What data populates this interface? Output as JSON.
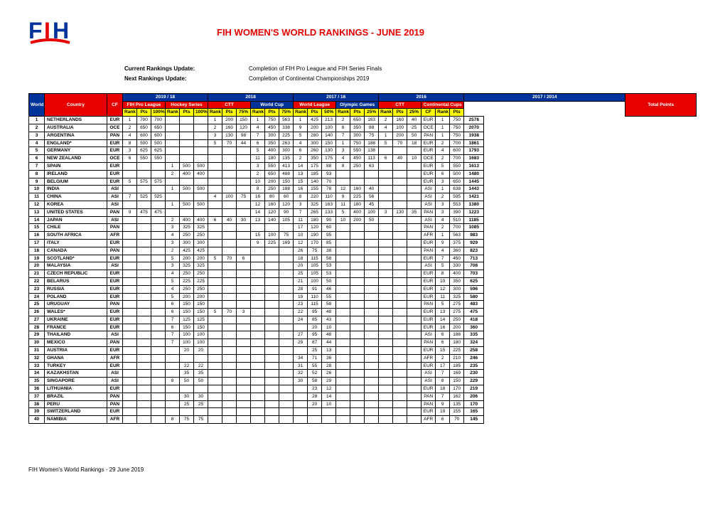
{
  "title": "FIH WOMEN'S WORLD RANKINGS  - JUNE 2019",
  "meta": {
    "current_label": "Current Rankings Update:",
    "current_value": "Completion of FIH Pro League and FIH Series Finals",
    "next_label": "Next Rankings Update:",
    "next_value": "Completion of Continental Championships 2019"
  },
  "periods": {
    "p1": "2019 / 18",
    "p2": "2018",
    "p3": "2017 / 16",
    "p4": "2016",
    "p5": "2017 / 2014"
  },
  "events": {
    "e1": "FIH Pro League",
    "e2": "Hockey Series",
    "e3": "CTT",
    "e4": "World Cup",
    "e5": "World League",
    "e6": "Olympic Games",
    "e7": "CTT",
    "e8": "Continental Cups"
  },
  "sub": {
    "rank": "Rank",
    "pts": "Pts",
    "w100": "100%",
    "w75": "75%",
    "w50": "50%",
    "w25": "25%",
    "cf": "CF"
  },
  "headers": {
    "world_rank": "World Rank",
    "country": "Country",
    "cf": "CF",
    "total": "Total Points"
  },
  "footer": "FIH Women's World Rankings -  29 June 2019",
  "rows": [
    {
      "r": 1,
      "c": "NETHERLANDS",
      "cf": "EUR",
      "d": [
        "1",
        "700",
        "700",
        "",
        "",
        "",
        "1",
        "200",
        "150",
        "1",
        "750",
        "563",
        "1",
        "425",
        "213",
        "2",
        "650",
        "163",
        "2",
        "160",
        "40",
        "EUR",
        "1",
        "750"
      ],
      "t": 2578
    },
    {
      "r": 2,
      "c": "AUSTRALIA",
      "cf": "OCE",
      "d": [
        "2",
        "650",
        "650",
        "",
        "",
        "",
        "2",
        "160",
        "120",
        "4",
        "450",
        "338",
        "9",
        "200",
        "100",
        "6",
        "350",
        "88",
        "4",
        "100",
        "25",
        "OCE",
        "1",
        "750"
      ],
      "t": 2070
    },
    {
      "r": 3,
      "c": "ARGENTINA",
      "cf": "PAN",
      "d": [
        "4",
        "600",
        "600",
        "",
        "",
        "",
        "3",
        "130",
        "98",
        "7",
        "300",
        "225",
        "5",
        "280",
        "140",
        "7",
        "300",
        "75",
        "1",
        "200",
        "50",
        "PAN",
        "1",
        "750"
      ],
      "t": 1938
    },
    {
      "r": 4,
      "c": "ENGLAND*",
      "cf": "EUR",
      "d": [
        "8",
        "500",
        "500",
        "",
        "",
        "",
        "5",
        "70",
        "44",
        "6",
        "350",
        "263",
        "4",
        "300",
        "150",
        "1",
        "750",
        "188",
        "5",
        "70",
        "18",
        "EUR",
        "2",
        "700"
      ],
      "t": 1861
    },
    {
      "r": 5,
      "c": "GERMANY",
      "cf": "EUR",
      "d": [
        "3",
        "625",
        "625",
        "",
        "",
        "",
        "",
        "",
        "",
        "5",
        "400",
        "300",
        "6",
        "260",
        "130",
        "3",
        "550",
        "138",
        "",
        "",
        "",
        "EUR",
        "4",
        "600"
      ],
      "t": 1793
    },
    {
      "r": 6,
      "c": "NEW ZEALAND",
      "cf": "OCE",
      "d": [
        "6",
        "550",
        "550",
        "",
        "",
        "",
        "",
        "",
        "",
        "11",
        "180",
        "135",
        "2",
        "350",
        "175",
        "4",
        "450",
        "113",
        "6",
        "40",
        "10",
        "OCE",
        "2",
        "700"
      ],
      "t": 1683
    },
    {
      "r": 7,
      "c": "SPAIN",
      "cf": "EUR",
      "d": [
        "",
        "",
        "",
        "1",
        "500",
        "500",
        "",
        "",
        "",
        "3",
        "550",
        "413",
        "14",
        "175",
        "88",
        "8",
        "250",
        "63",
        "",
        "",
        "",
        "EUR",
        "5",
        "550"
      ],
      "t": 1613
    },
    {
      "r": 8,
      "c": "IRELAND",
      "cf": "EUR",
      "d": [
        "",
        "",
        "",
        "2",
        "400",
        "400",
        "",
        "",
        "",
        "2",
        "650",
        "488",
        "13",
        "185",
        "93",
        "",
        "",
        "",
        "",
        "",
        "",
        "EUR",
        "6",
        "500"
      ],
      "t": 1480
    },
    {
      "r": 9,
      "c": "BELGIUM",
      "cf": "EUR",
      "d": [
        "5",
        "575",
        "575",
        "",
        "",
        "",
        "",
        "",
        "",
        "10",
        "200",
        "150",
        "15",
        "140",
        "70",
        "",
        "",
        "",
        "",
        "",
        "",
        "EUR",
        "3",
        "650"
      ],
      "t": 1445
    },
    {
      "r": 10,
      "c": "INDIA",
      "cf": "ASI",
      "d": [
        "",
        "",
        "",
        "1",
        "500",
        "500",
        "",
        "",
        "",
        "8",
        "250",
        "188",
        "16",
        "155",
        "78",
        "12",
        "160",
        "40",
        "",
        "",
        "",
        "ASI",
        "1",
        "638"
      ],
      "t": 1443
    },
    {
      "r": 11,
      "c": "CHINA",
      "cf": "ASI",
      "d": [
        "7",
        "525",
        "525",
        "",
        "",
        "",
        "4",
        "100",
        "75",
        "16",
        "80",
        "60",
        "8",
        "220",
        "110",
        "9",
        "225",
        "56",
        "",
        "",
        "",
        "ASI",
        "2",
        "595"
      ],
      "t": 1421
    },
    {
      "r": 12,
      "c": "KOREA",
      "cf": "ASI",
      "d": [
        "",
        "",
        "",
        "1",
        "500",
        "500",
        "",
        "",
        "",
        "12",
        "160",
        "120",
        "3",
        "325",
        "163",
        "11",
        "180",
        "45",
        "",
        "",
        "",
        "ASI",
        "3",
        "553"
      ],
      "t": 1380
    },
    {
      "r": 13,
      "c": "UNITED STATES",
      "cf": "PAN",
      "d": [
        "9",
        "475",
        "475",
        "",
        "",
        "",
        "",
        "",
        "",
        "14",
        "120",
        "90",
        "7",
        "265",
        "133",
        "5",
        "400",
        "100",
        "3",
        "130",
        "35",
        "PAN",
        "3",
        "390"
      ],
      "t": 1223
    },
    {
      "r": 14,
      "c": "JAPAN",
      "cf": "ASI",
      "d": [
        "",
        "",
        "",
        "2",
        "400",
        "400",
        "6",
        "40",
        "30",
        "13",
        "140",
        "105",
        "11",
        "180",
        "90",
        "10",
        "200",
        "50",
        "",
        "",
        "",
        "ASI",
        "4",
        "510"
      ],
      "t": 1185
    },
    {
      "r": 15,
      "c": "CHILE",
      "cf": "PAN",
      "d": [
        "",
        "",
        "",
        "3",
        "325",
        "325",
        "",
        "",
        "",
        "",
        "",
        "",
        "17",
        "120",
        "60",
        "",
        "",
        "",
        "",
        "",
        "",
        "PAN",
        "2",
        "700"
      ],
      "t": 1085
    },
    {
      "r": 16,
      "c": "SOUTH AFRICA",
      "cf": "AFR",
      "d": [
        "",
        "",
        "",
        "4",
        "250",
        "250",
        "",
        "",
        "",
        "15",
        "100",
        "75",
        "10",
        "190",
        "95",
        "",
        "",
        "",
        "",
        "",
        "",
        "AFR",
        "1",
        "563"
      ],
      "t": 983
    },
    {
      "r": 17,
      "c": "ITALY",
      "cf": "EUR",
      "d": [
        "",
        "",
        "",
        "3",
        "300",
        "300",
        "",
        "",
        "",
        "9",
        "225",
        "169",
        "12",
        "170",
        "85",
        "",
        "",
        "",
        "",
        "",
        "",
        "EUR",
        "9",
        "375"
      ],
      "t": 929
    },
    {
      "r": 18,
      "c": "CANADA",
      "cf": "PAN",
      "d": [
        "",
        "",
        "",
        "2",
        "425",
        "425",
        "",
        "",
        "",
        "",
        "",
        "",
        "26",
        "75",
        "38",
        "",
        "",
        "",
        "",
        "",
        "",
        "PAN",
        "4",
        "360"
      ],
      "t": 823
    },
    {
      "r": 19,
      "c": "SCOTLAND*",
      "cf": "EUR",
      "d": [
        "",
        "",
        "",
        "5",
        "200",
        "200",
        "5",
        "70",
        "6",
        "",
        "",
        "",
        "18",
        "115",
        "58",
        "",
        "",
        "",
        "",
        "",
        "",
        "EUR",
        "7",
        "450"
      ],
      "t": 713
    },
    {
      "r": 20,
      "c": "MALAYSIA",
      "cf": "ASI",
      "d": [
        "",
        "",
        "",
        "3",
        "325",
        "325",
        "",
        "",
        "",
        "",
        "",
        "",
        "20",
        "105",
        "53",
        "",
        "",
        "",
        "",
        "",
        "",
        "ASI",
        "5",
        "330"
      ],
      "t": 708
    },
    {
      "r": 21,
      "c": "CZECH REPUBLIC",
      "cf": "EUR",
      "d": [
        "",
        "",
        "",
        "4",
        "250",
        "250",
        "",
        "",
        "",
        "",
        "",
        "",
        "25",
        "105",
        "53",
        "",
        "",
        "",
        "",
        "",
        "",
        "EUR",
        "8",
        "400"
      ],
      "t": 703
    },
    {
      "r": 22,
      "c": "BELARUS",
      "cf": "EUR",
      "d": [
        "",
        "",
        "",
        "5",
        "225",
        "225",
        "",
        "",
        "",
        "",
        "",
        "",
        "21",
        "100",
        "50",
        "",
        "",
        "",
        "",
        "",
        "",
        "EUR",
        "10",
        "350"
      ],
      "t": 625
    },
    {
      "r": 23,
      "c": "RUSSIA",
      "cf": "EUR",
      "d": [
        "",
        "",
        "",
        "4",
        "250",
        "250",
        "",
        "",
        "",
        "",
        "",
        "",
        "28",
        "91",
        "46",
        "",
        "",
        "",
        "",
        "",
        "",
        "EUR",
        "12",
        "300"
      ],
      "t": 596
    },
    {
      "r": 24,
      "c": "POLAND",
      "cf": "EUR",
      "d": [
        "",
        "",
        "",
        "5",
        "200",
        "200",
        "",
        "",
        "",
        "",
        "",
        "",
        "19",
        "110",
        "55",
        "",
        "",
        "",
        "",
        "",
        "",
        "EUR",
        "11",
        "325"
      ],
      "t": 580
    },
    {
      "r": 25,
      "c": "URUGUAY",
      "cf": "PAN",
      "d": [
        "",
        "",
        "",
        "6",
        "150",
        "150",
        "",
        "",
        "",
        "",
        "",
        "",
        "23",
        "115",
        "58",
        "",
        "",
        "",
        "",
        "",
        "",
        "PAN",
        "5",
        "275"
      ],
      "t": 483
    },
    {
      "r": 26,
      "c": "WALES*",
      "cf": "EUR",
      "d": [
        "",
        "",
        "",
        "6",
        "150",
        "150",
        "5",
        "70",
        "3",
        "",
        "",
        "",
        "22",
        "95",
        "48",
        "",
        "",
        "",
        "",
        "",
        "",
        "EUR",
        "13",
        "275"
      ],
      "t": 475
    },
    {
      "r": 27,
      "c": "UKRAINE",
      "cf": "EUR",
      "d": [
        "",
        "",
        "",
        "7",
        "125",
        "125",
        "",
        "",
        "",
        "",
        "",
        "",
        "24",
        "85",
        "43",
        "",
        "",
        "",
        "",
        "",
        "",
        "EUR",
        "14",
        "250"
      ],
      "t": 418
    },
    {
      "r": 28,
      "c": "FRANCE",
      "cf": "EUR",
      "d": [
        "",
        "",
        "",
        "6",
        "150",
        "150",
        "",
        "",
        "",
        "",
        "",
        "",
        "",
        "20",
        "10",
        "",
        "",
        "",
        "",
        "",
        "",
        "EUR",
        "16",
        "200"
      ],
      "t": 360
    },
    {
      "r": 29,
      "c": "THAILAND",
      "cf": "ASI",
      "d": [
        "",
        "",
        "",
        "7",
        "100",
        "100",
        "",
        "",
        "",
        "",
        "",
        "",
        "27",
        "95",
        "48",
        "",
        "",
        "",
        "",
        "",
        "",
        "ASI",
        "6",
        "188"
      ],
      "t": 335
    },
    {
      "r": 30,
      "c": "MEXICO",
      "cf": "PAN",
      "d": [
        "",
        "",
        "",
        "7",
        "100",
        "100",
        "",
        "",
        "",
        "",
        "",
        "",
        "29",
        "87",
        "44",
        "",
        "",
        "",
        "",
        "",
        "",
        "PAN",
        "6",
        "180"
      ],
      "t": 324
    },
    {
      "r": 31,
      "c": "AUSTRIA",
      "cf": "EUR",
      "d": [
        "",
        "",
        "",
        "",
        "20",
        "20",
        "",
        "",
        "",
        "",
        "",
        "",
        "",
        "25",
        "13",
        "",
        "",
        "",
        "",
        "",
        "",
        "EUR",
        "15",
        "225"
      ],
      "t": 258
    },
    {
      "r": 32,
      "c": "GHANA",
      "cf": "AFR",
      "d": [
        "",
        "",
        "",
        "",
        "",
        "",
        "",
        "",
        "",
        "",
        "",
        "",
        "34",
        "71",
        "36",
        "",
        "",
        "",
        "",
        "",
        "",
        "AFR",
        "2",
        "210"
      ],
      "t": 246
    },
    {
      "r": 33,
      "c": "TURKEY",
      "cf": "EUR",
      "d": [
        "",
        "",
        "",
        "",
        "22",
        "22",
        "",
        "",
        "",
        "",
        "",
        "",
        "31",
        "55",
        "28",
        "",
        "",
        "",
        "",
        "",
        "",
        "EUR",
        "17",
        "185"
      ],
      "t": 235
    },
    {
      "r": 34,
      "c": "KAZAKHSTAN",
      "cf": "ASI",
      "d": [
        "",
        "",
        "",
        "",
        "35",
        "35",
        "",
        "",
        "",
        "",
        "",
        "",
        "32",
        "52",
        "26",
        "",
        "",
        "",
        "",
        "",
        "",
        "ASI",
        "7",
        "169"
      ],
      "t": 230
    },
    {
      "r": 35,
      "c": "SINGAPORE",
      "cf": "ASI",
      "d": [
        "",
        "",
        "",
        "8",
        "50",
        "50",
        "",
        "",
        "",
        "",
        "",
        "",
        "30",
        "58",
        "29",
        "",
        "",
        "",
        "",
        "",
        "",
        "ASI",
        "8",
        "150"
      ],
      "t": 229
    },
    {
      "r": 36,
      "c": "LITHUANIA",
      "cf": "EUR",
      "d": [
        "",
        "",
        "",
        "",
        "",
        "",
        "",
        "",
        "",
        "",
        "",
        "",
        "",
        "23",
        "12",
        "",
        "",
        "",
        "",
        "",
        "",
        "EUR",
        "18",
        "170"
      ],
      "t": 219
    },
    {
      "r": 37,
      "c": "BRAZIL",
      "cf": "PAN",
      "d": [
        "",
        "",
        "",
        "",
        "30",
        "30",
        "",
        "",
        "",
        "",
        "",
        "",
        "",
        "28",
        "14",
        "",
        "",
        "",
        "",
        "",
        "",
        "PAN",
        "7",
        "162"
      ],
      "t": 206
    },
    {
      "r": 38,
      "c": "PERU",
      "cf": "PAN",
      "d": [
        "",
        "",
        "",
        "",
        "25",
        "25",
        "",
        "",
        "",
        "",
        "",
        "",
        "",
        "20",
        "10",
        "",
        "",
        "",
        "",
        "",
        "",
        "PAN",
        "9",
        "135"
      ],
      "t": 170
    },
    {
      "r": 39,
      "c": "SWITZERLAND",
      "cf": "EUR",
      "d": [
        "",
        "",
        "",
        "",
        "",
        "",
        "",
        "",
        "",
        "",
        "",
        "",
        "",
        "",
        "",
        "",
        "",
        "",
        "",
        "",
        "",
        "EUR",
        "19",
        "155"
      ],
      "t": 165
    },
    {
      "r": 40,
      "c": "NAMIBIA",
      "cf": "AFR",
      "d": [
        "",
        "",
        "",
        "8",
        "75",
        "75",
        "",
        "",
        "",
        "",
        "",
        "",
        "",
        "",
        "",
        "",
        "",
        "",
        "",
        "",
        "",
        "AFR",
        "6",
        "70"
      ],
      "t": 145
    }
  ]
}
